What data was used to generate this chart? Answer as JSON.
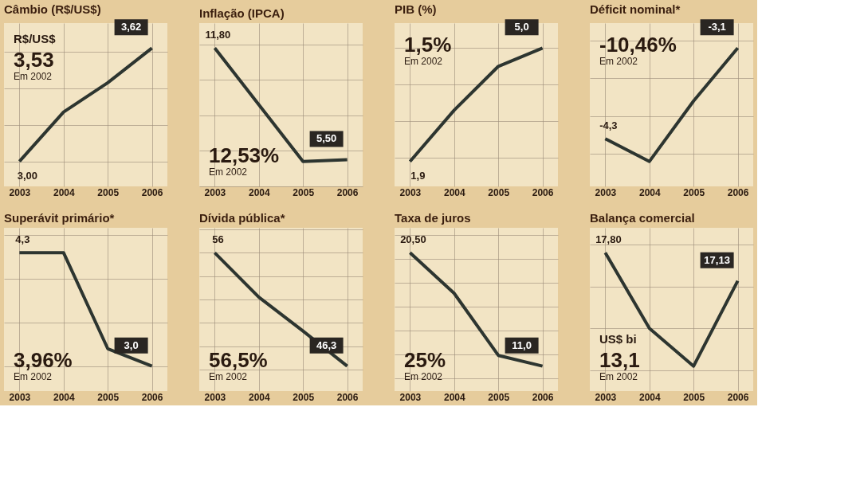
{
  "chart_data": [
    {
      "type": "line",
      "title": "Câmbio (R$/US$)",
      "categories": [
        "2003",
        "2004",
        "2005",
        "2006"
      ],
      "tick_labels": "x",
      "color": "#2d3530",
      "grid": true,
      "values": [
        3.0,
        3.27,
        3.43,
        3.62
      ],
      "value_labels": [
        "3,00",
        null,
        null,
        "3,62"
      ],
      "annotations": [
        "R$/US$",
        "3,53",
        "Em 2002"
      ]
    },
    {
      "type": "line",
      "title": "Inflação (IPCA)",
      "categories": [
        "2003",
        "2004",
        "2005",
        "2006"
      ],
      "tick_labels": "x",
      "color": "#2d3530",
      "grid": true,
      "values": [
        11.8,
        8.6,
        5.4,
        5.5
      ],
      "value_labels": [
        "11,80",
        null,
        null,
        "5,50"
      ],
      "annotations": [
        "12,53%",
        "Em 2002"
      ]
    },
    {
      "type": "line",
      "title": "PIB (%)",
      "categories": [
        "2003",
        "2004",
        "2005",
        "2006"
      ],
      "tick_labels": "x",
      "color": "#2d3530",
      "grid": true,
      "values": [
        1.9,
        3.3,
        4.5,
        5.0
      ],
      "value_labels": [
        "1,9",
        null,
        null,
        "5,0"
      ],
      "annotations": [
        "1,5%",
        "Em 2002"
      ]
    },
    {
      "type": "line",
      "title": "Déficit nominal*",
      "categories": [
        "2003",
        "2004",
        "2005",
        "2006"
      ],
      "tick_labels": "x",
      "color": "#2d3530",
      "grid": true,
      "values": [
        -4.3,
        -4.6,
        -3.8,
        -3.1
      ],
      "value_labels": [
        "-4,3",
        null,
        null,
        "-3,1"
      ],
      "annotations": [
        "-10,46%",
        "Em 2002"
      ]
    },
    {
      "type": "line",
      "title": "Superávit primário*",
      "categories": [
        "2003",
        "2004",
        "2005",
        "2006"
      ],
      "tick_labels": "x",
      "color": "#2d3530",
      "grid": true,
      "values": [
        4.3,
        4.3,
        3.2,
        3.0
      ],
      "value_labels": [
        "4,3",
        null,
        null,
        "3,0"
      ],
      "annotations": [
        "3,96%",
        "Em 2002"
      ]
    },
    {
      "type": "line",
      "title": "Dívida pública*",
      "categories": [
        "2003",
        "2004",
        "2005",
        "2006"
      ],
      "tick_labels": "x",
      "color": "#2d3530",
      "grid": true,
      "values": [
        56,
        52.2,
        49.3,
        46.3
      ],
      "value_labels": [
        "56",
        null,
        null,
        "46,3"
      ],
      "annotations": [
        "56,5%",
        "Em 2002"
      ]
    },
    {
      "type": "line",
      "title": "Taxa de juros",
      "categories": [
        "2003",
        "2004",
        "2005",
        "2006"
      ],
      "tick_labels": "x",
      "color": "#2d3530",
      "grid": true,
      "values": [
        20.5,
        17.1,
        11.9,
        11.0
      ],
      "value_labels": [
        "20,50",
        null,
        null,
        "11,0"
      ],
      "annotations": [
        "25%",
        "Em 2002"
      ]
    },
    {
      "type": "line",
      "title": "Balança comercial",
      "categories": [
        "2003",
        "2004",
        "2005",
        "2006"
      ],
      "tick_labels": "x",
      "color": "#2d3530",
      "grid": true,
      "values": [
        17.8,
        16.0,
        15.1,
        17.13
      ],
      "value_labels": [
        "17,80",
        null,
        null,
        "17,13"
      ],
      "annotations": [
        "US$ bi",
        "13,1",
        "Em 2002"
      ]
    }
  ]
}
